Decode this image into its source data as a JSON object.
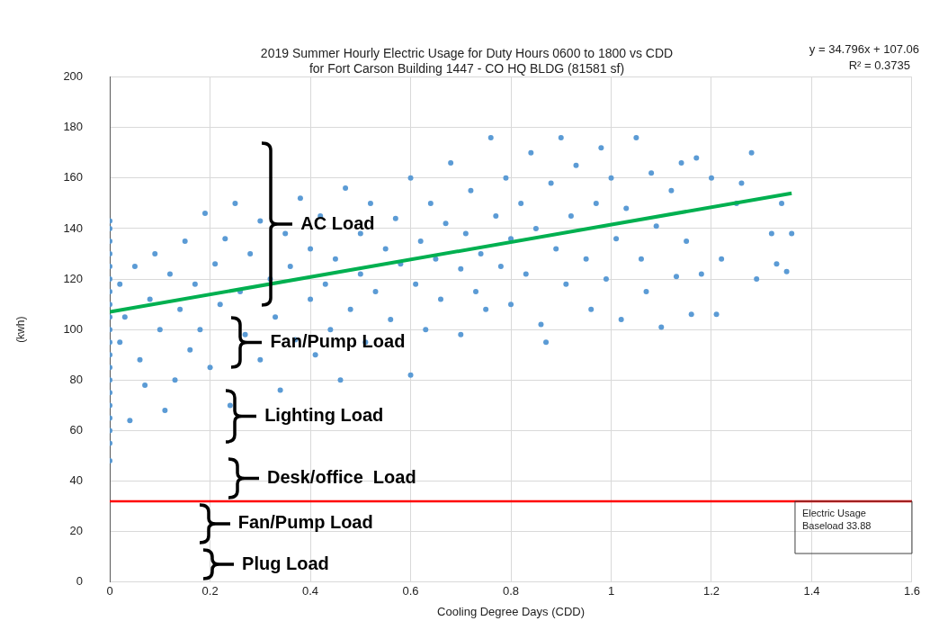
{
  "chart_data": {
    "type": "scatter",
    "title": "2019 Summer Hourly Electric Usage for Duty Hours 0600 to 1800 vs CDD\nfor Fort Carson Building 1447 - CO HQ BLDG (81581 sf)",
    "xlabel": "Cooling Degree Days (CDD)",
    "ylabel": "(kwh)",
    "xlim": [
      0,
      1.6
    ],
    "xticks": [
      0,
      0.2,
      0.4,
      0.6,
      0.8,
      1,
      1.2,
      1.4,
      1.6
    ],
    "ylim": [
      0,
      200
    ],
    "yticks": [
      0,
      20,
      40,
      60,
      80,
      100,
      120,
      140,
      160,
      180,
      200
    ],
    "grid": true,
    "legend": false,
    "series": [
      {
        "color": "#5b9bd5",
        "marker": "circle",
        "x": [
          0,
          0,
          0,
          0,
          0,
          0,
          0,
          0,
          0,
          0,
          0,
          0,
          0,
          0,
          0,
          0,
          0,
          0,
          0,
          0,
          0.02,
          0.02,
          0.03,
          0.04,
          0.05,
          0.06,
          0.07,
          0.08,
          0.09,
          0.1,
          0.11,
          0.12,
          0.13,
          0.14,
          0.15,
          0.16,
          0.17,
          0.18,
          0.19,
          0.2,
          0.21,
          0.22,
          0.23,
          0.24,
          0.25,
          0.26,
          0.27,
          0.28,
          0.3,
          0.3,
          0.32,
          0.33,
          0.34,
          0.35,
          0.36,
          0.37,
          0.38,
          0.4,
          0.4,
          0.41,
          0.42,
          0.43,
          0.44,
          0.45,
          0.46,
          0.47,
          0.48,
          0.5,
          0.5,
          0.51,
          0.52,
          0.53,
          0.55,
          0.56,
          0.57,
          0.58,
          0.6,
          0.6,
          0.61,
          0.62,
          0.63,
          0.64,
          0.65,
          0.66,
          0.67,
          0.68,
          0.7,
          0.7,
          0.71,
          0.72,
          0.73,
          0.74,
          0.75,
          0.76,
          0.77,
          0.78,
          0.79,
          0.8,
          0.8,
          0.82,
          0.83,
          0.84,
          0.85,
          0.86,
          0.87,
          0.88,
          0.89,
          0.9,
          0.91,
          0.92,
          0.93,
          0.95,
          0.96,
          0.97,
          0.98,
          0.99,
          1,
          1.01,
          1.02,
          1.03,
          1.05,
          1.06,
          1.07,
          1.08,
          1.09,
          1.1,
          1.12,
          1.13,
          1.14,
          1.15,
          1.16,
          1.17,
          1.18,
          1.2,
          1.21,
          1.22,
          1.25,
          1.26,
          1.28,
          1.29,
          1.32,
          1.33,
          1.34,
          1.35,
          1.36
        ],
        "values": [
          48,
          55,
          60,
          65,
          70,
          75,
          80,
          85,
          90,
          95,
          100,
          105,
          110,
          115,
          120,
          125,
          130,
          135,
          140,
          143,
          95,
          118,
          105,
          64,
          125,
          88,
          78,
          112,
          130,
          100,
          68,
          122,
          80,
          108,
          135,
          92,
          118,
          100,
          146,
          85,
          126,
          110,
          136,
          70,
          150,
          115,
          98,
          130,
          143,
          88,
          120,
          105,
          76,
          138,
          125,
          96,
          152,
          112,
          132,
          90,
          145,
          118,
          100,
          128,
          80,
          156,
          108,
          138,
          122,
          95,
          150,
          115,
          132,
          104,
          144,
          126,
          82,
          160,
          118,
          135,
          100,
          150,
          128,
          112,
          142,
          166,
          124,
          98,
          138,
          155,
          115,
          130,
          108,
          176,
          145,
          125,
          160,
          136,
          110,
          150,
          122,
          170,
          140,
          102,
          95,
          158,
          132,
          176,
          118,
          145,
          165,
          128,
          108,
          150,
          172,
          120,
          160,
          136,
          104,
          148,
          176,
          128,
          115,
          162,
          141,
          101,
          155,
          121,
          166,
          135,
          106,
          168,
          122,
          160,
          106,
          128,
          150,
          158,
          170,
          120,
          138,
          126,
          150,
          123,
          138
        ]
      },
      {
        "type": "line",
        "color": "#00b050",
        "marker": "none",
        "x": [
          0,
          1.36
        ],
        "values": [
          107,
          154
        ]
      }
    ],
    "ref_lines": [
      {
        "axis": "y",
        "value": 32,
        "label": "Electric Usage Baseload 33.88",
        "color": "#ff0000"
      }
    ],
    "annotations": [
      "y = 34.796x + 107.06",
      "R² = 0.3735",
      "AC Load",
      "Fan/Pump Load",
      "Lighting Load",
      "Desk/office  Load",
      "Fan/Pump Load",
      "Plug Load"
    ]
  }
}
